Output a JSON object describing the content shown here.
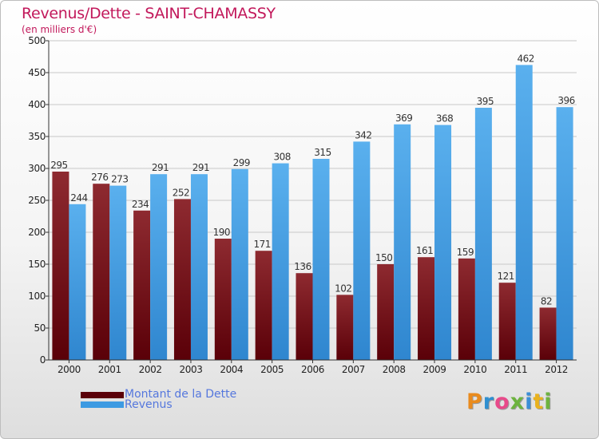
{
  "title": "Revenus/Dette - SAINT-CHAMASSY",
  "subtitle": "(en milliers d'€)",
  "colors": {
    "dette": "#7a0f17",
    "revenus": "#3d9ae2",
    "title": "#c2185b"
  },
  "legend": {
    "dette_label": "Montant de la Dette",
    "revenus_label": "Revenus"
  },
  "logo": {
    "text": "Proxiti"
  },
  "chart_data": {
    "type": "bar",
    "title": "Revenus/Dette - SAINT-CHAMASSY",
    "ylabel": "(en milliers d'€)",
    "xlabel": "",
    "categories": [
      "2000",
      "2001",
      "2002",
      "2003",
      "2004",
      "2005",
      "2006",
      "2007",
      "2008",
      "2009",
      "2010",
      "2011",
      "2012"
    ],
    "series": [
      {
        "name": "Montant de la Dette",
        "values": [
          295,
          276,
          234,
          252,
          190,
          171,
          136,
          102,
          150,
          161,
          159,
          121,
          82
        ]
      },
      {
        "name": "Revenus",
        "values": [
          244,
          273,
          291,
          291,
          299,
          308,
          315,
          342,
          369,
          368,
          395,
          462,
          396
        ]
      }
    ],
    "ylim": [
      0,
      500
    ],
    "yticks": [
      0,
      50,
      100,
      150,
      200,
      250,
      300,
      350,
      400,
      450,
      500
    ],
    "grid": true,
    "legend_position": "bottom-left"
  }
}
